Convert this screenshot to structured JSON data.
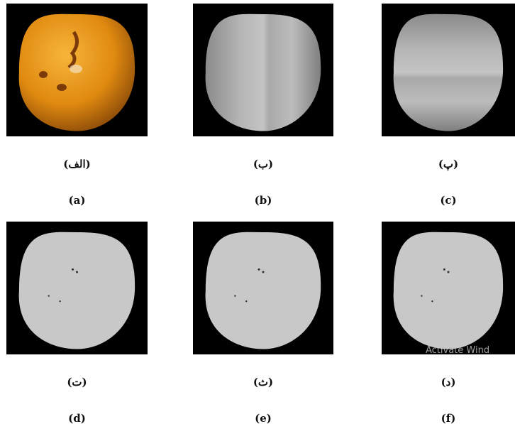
{
  "panels": [
    {
      "persian": "(الف)",
      "english": "(a)"
    },
    {
      "persian": "(ب)",
      "english": "(b)"
    },
    {
      "persian": "(پ)",
      "english": "(c)"
    },
    {
      "persian": "(ت)",
      "english": "(d)"
    },
    {
      "persian": "(ث)",
      "english": "(e)"
    },
    {
      "persian": "(د)",
      "english": "(f)"
    }
  ],
  "watermark": "Activate Wind"
}
